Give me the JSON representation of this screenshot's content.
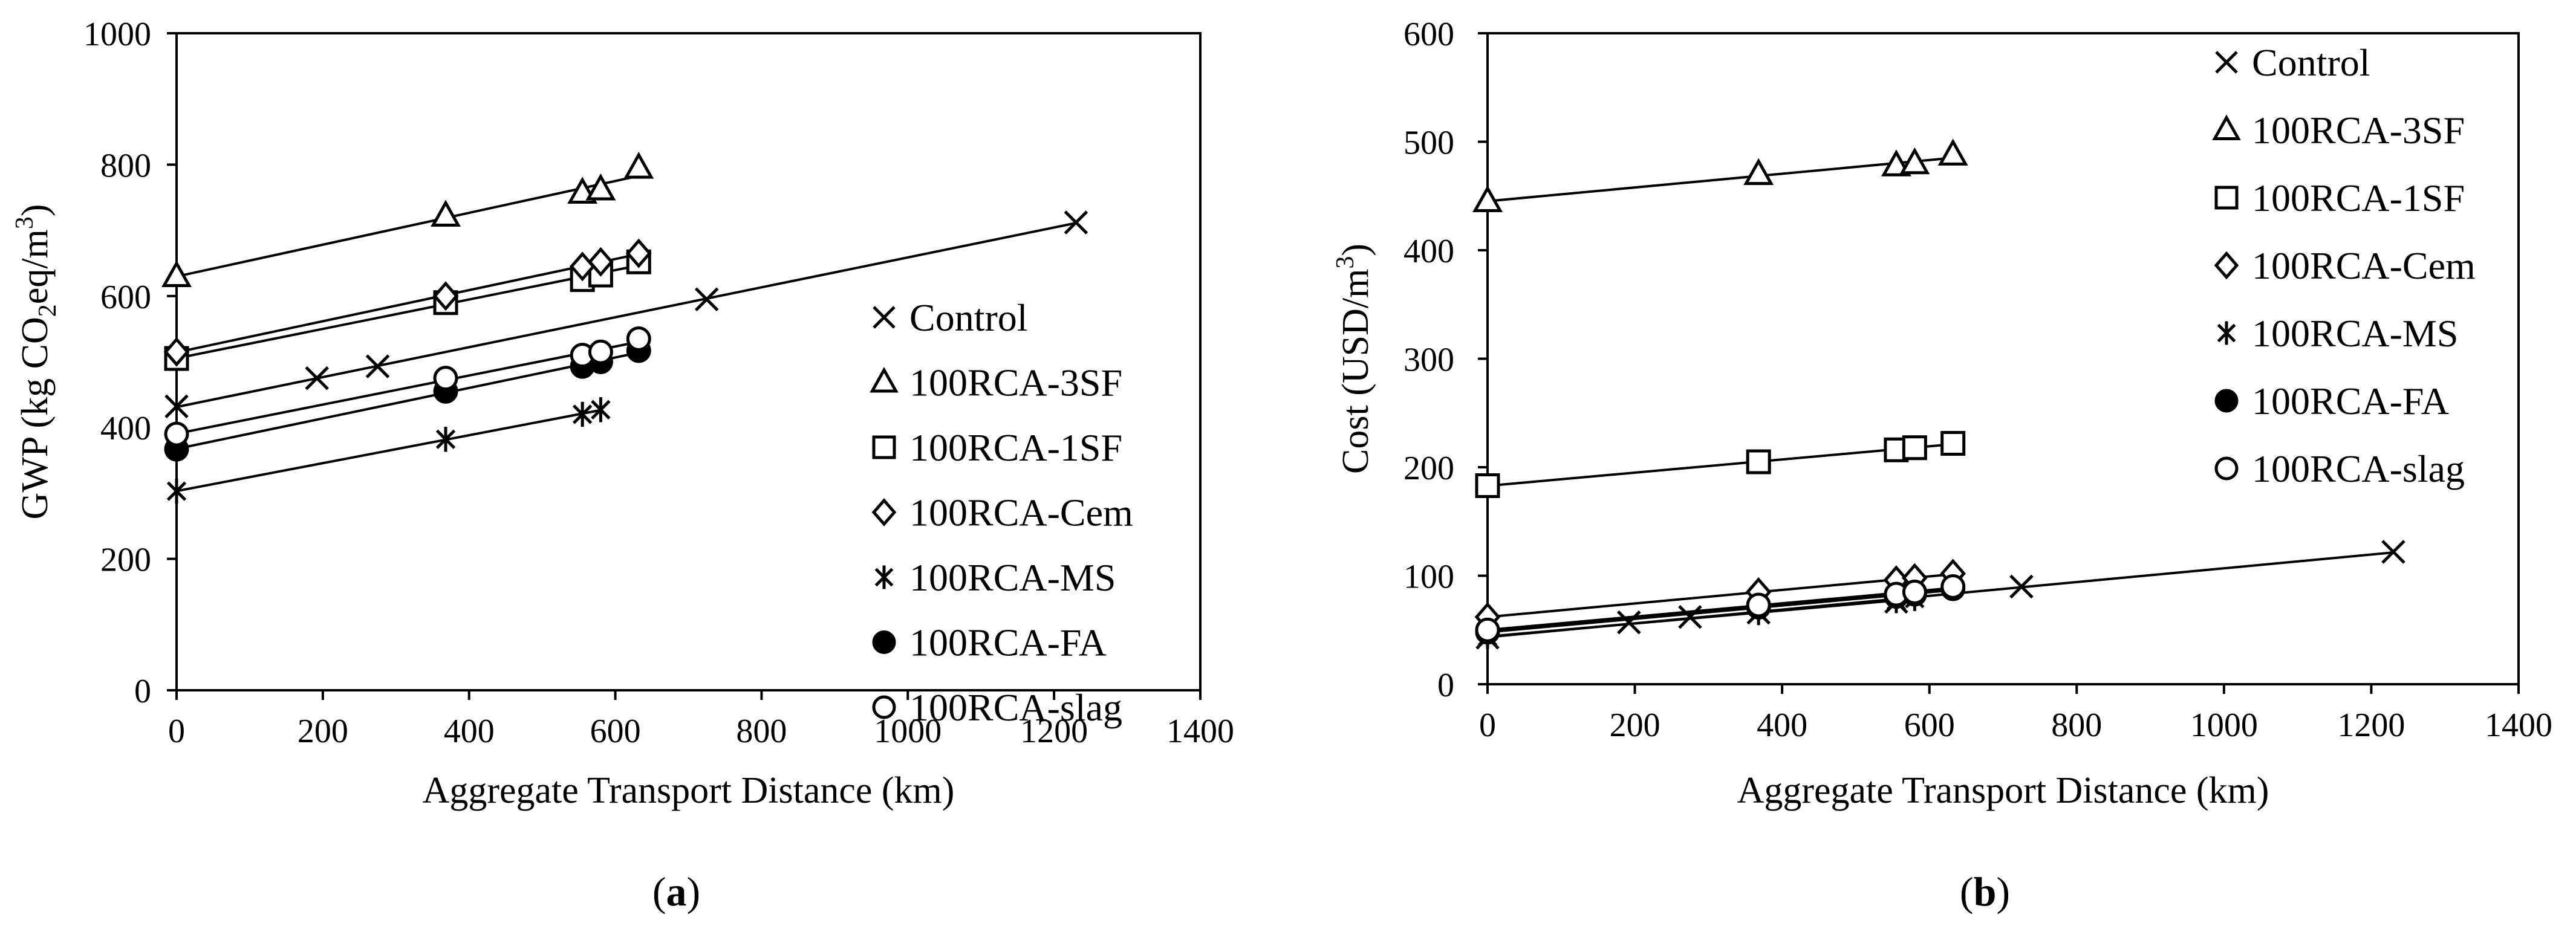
{
  "chart_data": [
    {
      "type": "scatter",
      "panel_label": "(a)",
      "panel_letter": "a",
      "title": "",
      "xlabel": "Aggregate Transport Distance (km)",
      "ylabel": "GWP (kg CO2eq/m3)",
      "ylabel_parts": [
        "GWP (kg CO",
        "2",
        "eq/m",
        "3",
        ")"
      ],
      "xlim": [
        0,
        1400
      ],
      "ylim": [
        0,
        1000
      ],
      "xticks": [
        0,
        200,
        400,
        600,
        800,
        1000,
        1200,
        1400
      ],
      "yticks": [
        0,
        200,
        400,
        600,
        800,
        1000
      ],
      "grid": false,
      "legend_position": "right",
      "trendlines": true,
      "series": [
        {
          "name": "Control",
          "marker": "x",
          "x": [
            0,
            192,
            275,
            725,
            1230
          ],
          "y": [
            432,
            475,
            493,
            595,
            712
          ]
        },
        {
          "name": "100RCA-3SF",
          "marker": "triangle",
          "x": [
            0,
            368,
            555,
            580,
            632
          ],
          "y": [
            630,
            722,
            757,
            762,
            795
          ]
        },
        {
          "name": "100RCA-1SF",
          "marker": "square",
          "x": [
            0,
            368,
            555,
            580,
            632
          ],
          "y": [
            505,
            590,
            625,
            632,
            652
          ]
        },
        {
          "name": "100RCA-Cem",
          "marker": "diamond",
          "x": [
            0,
            368,
            555,
            580,
            632
          ],
          "y": [
            515,
            600,
            645,
            652,
            665
          ]
        },
        {
          "name": "100RCA-MS",
          "marker": "asterisk",
          "x": [
            0,
            368,
            555,
            580
          ],
          "y": [
            303,
            382,
            420,
            427
          ]
        },
        {
          "name": "100RCA-FA",
          "marker": "filled-circle",
          "x": [
            0,
            368,
            555,
            580,
            632
          ],
          "y": [
            367,
            455,
            493,
            500,
            517
          ]
        },
        {
          "name": "100RCA-slag",
          "marker": "circle",
          "x": [
            0,
            368,
            555,
            580,
            632
          ],
          "y": [
            390,
            475,
            510,
            515,
            535
          ]
        }
      ]
    },
    {
      "type": "scatter",
      "panel_label": "(b)",
      "panel_letter": "b",
      "title": "",
      "xlabel": "Aggregate Transport Distance (km)",
      "ylabel": "Cost (USD/m3)",
      "ylabel_parts": [
        "Cost (USD/m",
        "3",
        ")"
      ],
      "xlim": [
        0,
        1400
      ],
      "ylim": [
        0,
        600
      ],
      "xticks": [
        0,
        200,
        400,
        600,
        800,
        1000,
        1200,
        1400
      ],
      "yticks": [
        0,
        100,
        200,
        300,
        400,
        500,
        600
      ],
      "grid": false,
      "legend_position": "top-right",
      "trendlines": true,
      "series": [
        {
          "name": "Control",
          "marker": "x",
          "x": [
            0,
            192,
            275,
            368,
            555,
            725,
            1230
          ],
          "y": [
            43,
            57,
            62,
            66,
            76,
            90,
            122
          ]
        },
        {
          "name": "100RCA-3SF",
          "marker": "triangle",
          "x": [
            0,
            368,
            555,
            580,
            632
          ],
          "y": [
            445,
            470,
            478,
            480,
            488
          ]
        },
        {
          "name": "100RCA-1SF",
          "marker": "square",
          "x": [
            0,
            368,
            555,
            580,
            632
          ],
          "y": [
            183,
            205,
            216,
            218,
            222
          ]
        },
        {
          "name": "100RCA-Cem",
          "marker": "diamond",
          "x": [
            0,
            368,
            555,
            580,
            632
          ],
          "y": [
            62,
            85,
            96,
            98,
            102
          ]
        },
        {
          "name": "100RCA-MS",
          "marker": "asterisk",
          "x": [
            0,
            368,
            555,
            580
          ],
          "y": [
            44,
            66,
            77,
            79
          ]
        },
        {
          "name": "100RCA-FA",
          "marker": "filled-circle",
          "x": [
            0,
            368,
            555,
            580,
            632
          ],
          "y": [
            48,
            71,
            81,
            83,
            88
          ]
        },
        {
          "name": "100RCA-slag",
          "marker": "circle",
          "x": [
            0,
            368,
            555,
            580,
            632
          ],
          "y": [
            50,
            73,
            83,
            85,
            90
          ]
        }
      ]
    }
  ]
}
